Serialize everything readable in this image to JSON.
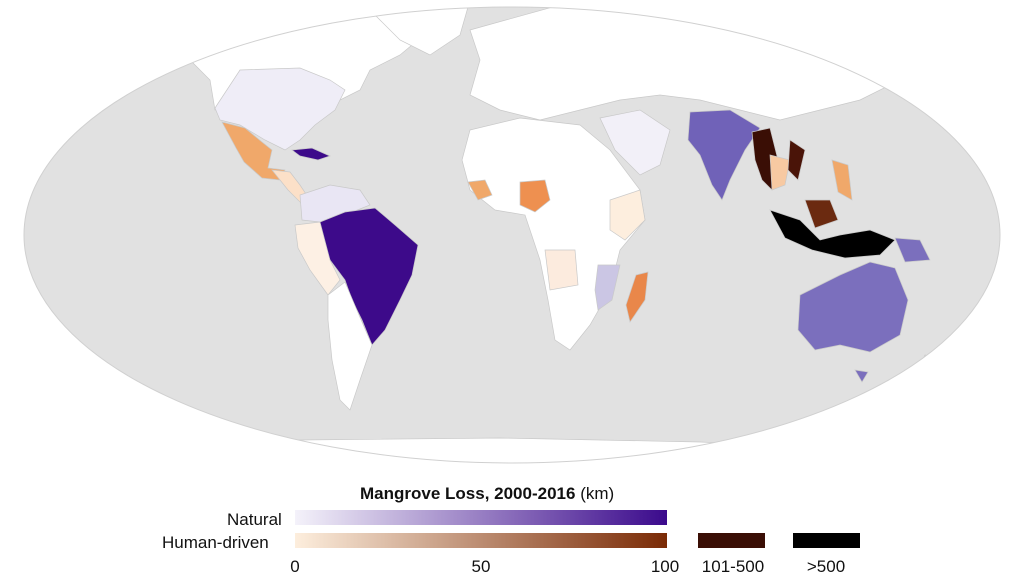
{
  "legend": {
    "title": "Mangrove Loss, 2000-2016",
    "unit": "(km)",
    "row_natural": "Natural",
    "row_human": "Human-driven",
    "tick_0": "0",
    "tick_50": "50",
    "tick_100": "100",
    "class_101_500": "101-500",
    "class_500": ">500",
    "natural_gradient": [
      "#f4f2fa",
      "#3b0a8c"
    ],
    "human_gradient": [
      "#fdeedd",
      "#7a2a05"
    ],
    "class_101_500_color": "#3a0e05",
    "class_500_color": "#000000"
  },
  "map_colors": {
    "ocean": "#e1e1e1",
    "land_nodata": "#ffffff",
    "brazil": "#3d0a8a",
    "australia": "#7b6fbd",
    "india": "#7062b8",
    "mexico": "#f0a86a",
    "nigeria": "#ee9050",
    "madagascar": "#e9874a",
    "myanmar": "#3a0e05",
    "indonesia": "#000000"
  }
}
